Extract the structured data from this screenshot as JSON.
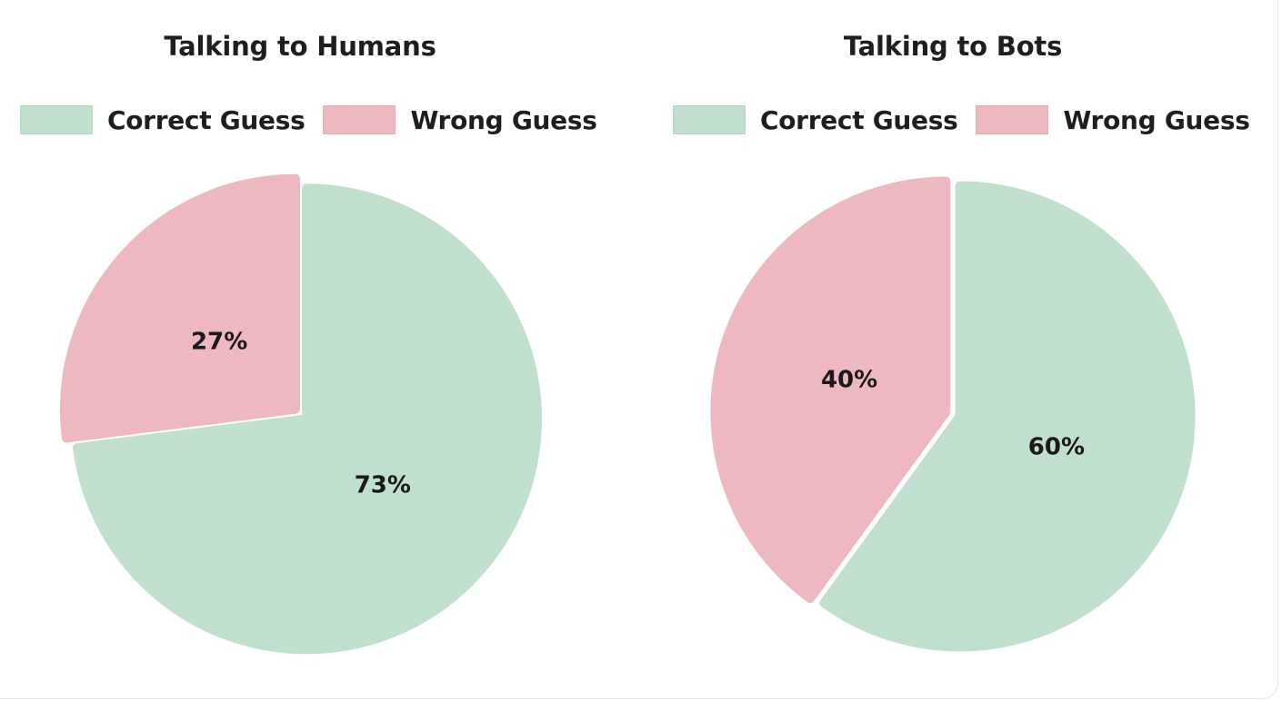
{
  "colors": {
    "correct": "#c0dfcc",
    "correct_border": "#b3d6c1",
    "wrong": "#eeb8c1",
    "wrong_border": "#e6aab5",
    "text": "#1e1e1e"
  },
  "chart_data": [
    {
      "type": "pie",
      "title": "Talking to Humans",
      "legend": [
        "Correct Guess",
        "Wrong Guess"
      ],
      "legend_position": "top",
      "slices": [
        {
          "label": "Correct Guess",
          "value": 73,
          "display": "73%"
        },
        {
          "label": "Wrong Guess",
          "value": 27,
          "display": "27%"
        }
      ]
    },
    {
      "type": "pie",
      "title": "Talking to Bots",
      "legend": [
        "Correct Guess",
        "Wrong Guess"
      ],
      "legend_position": "top",
      "slices": [
        {
          "label": "Correct Guess",
          "value": 60,
          "display": "60%"
        },
        {
          "label": "Wrong Guess",
          "value": 40,
          "display": "40%"
        }
      ]
    }
  ]
}
